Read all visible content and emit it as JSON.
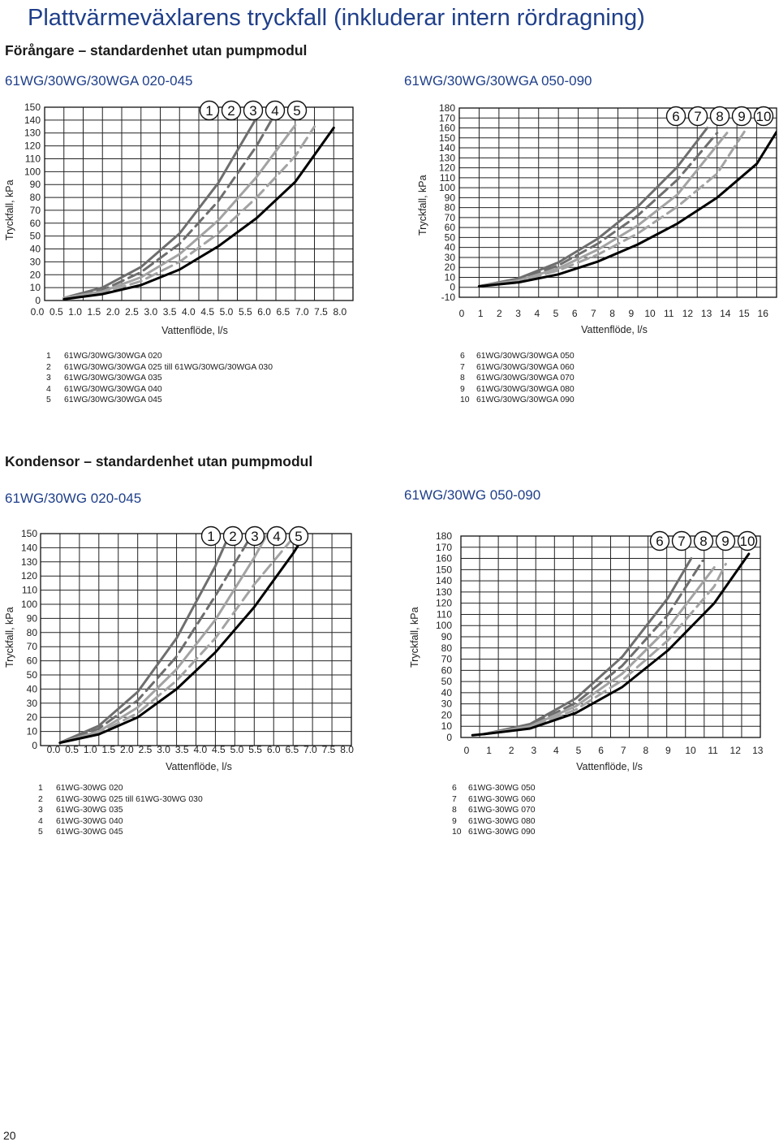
{
  "page": {
    "title": "Plattvärmeväxlarens tryckfall (inkluderar intern rördragning)",
    "page_number": "20"
  },
  "sections": [
    {
      "title": "Förångare – standardenhet utan pumpmodul"
    },
    {
      "title": "Kondensor – standardenhet utan pumpmodul"
    }
  ],
  "legends": [
    [
      "61WG/30WG/30WGA 020",
      "61WG/30WG/30WGA 025 till 61WG/30WG/30WGA 030",
      "61WG/30WG/30WGA 035",
      "61WG/30WG/30WGA 040",
      "61WG/30WG/30WGA 045"
    ],
    [
      "61WG/30WG/30WGA 050",
      "61WG/30WG/30WGA 060",
      "61WG/30WG/30WGA 070",
      "61WG/30WG/30WGA 080",
      "61WG/30WG/30WGA 090"
    ],
    [
      "61WG-30WG 020",
      "61WG-30WG 025 till 61WG-30WG 030",
      "61WG-30WG 035",
      "61WG-30WG 040",
      "61WG-30WG 045"
    ],
    [
      "61WG-30WG 050",
      "61WG-30WG 060",
      "61WG-30WG 070",
      "61WG-30WG 080",
      "61WG-30WG 090"
    ]
  ],
  "series_style": [
    {
      "color": "#6e6e6e",
      "dash": "solid"
    },
    {
      "color": "#6e6e6e",
      "dash": "dashed"
    },
    {
      "color": "#a3a3a3",
      "dash": "solid"
    },
    {
      "color": "#a3a3a3",
      "dash": "dashed"
    },
    {
      "color": "#000000",
      "dash": "solid"
    }
  ],
  "chart_data": [
    {
      "type": "line",
      "title": "61WG/30WG/30WGA 020-045",
      "xlabel": "Vattenflöde, l/s",
      "ylabel": "Tryckfall, kPa",
      "xlim": [
        0,
        8
      ],
      "ylim": [
        0,
        150
      ],
      "xticks": [
        "0.0",
        "0.5",
        "1.0",
        "1.5",
        "2.0",
        "2.5",
        "3.0",
        "3.5",
        "4.0",
        "4.5",
        "5.0",
        "5.5",
        "6.0",
        "6.5",
        "7.0",
        "7.5",
        "8.0"
      ],
      "yticks": [
        "0",
        "10",
        "20",
        "30",
        "40",
        "50",
        "60",
        "70",
        "80",
        "90",
        "100",
        "110",
        "120",
        "130",
        "140",
        "150"
      ],
      "grid": true,
      "series": [
        {
          "name": "1",
          "x": [
            0.5,
            1.5,
            2.5,
            3.5,
            4.5,
            5.5
          ],
          "y": [
            2,
            10,
            26,
            52,
            91,
            142
          ]
        },
        {
          "name": "2",
          "x": [
            0.5,
            1.5,
            2.5,
            3.5,
            4.5,
            5.5,
            6.0
          ],
          "y": [
            2,
            8,
            22,
            44,
            77,
            120,
            146
          ]
        },
        {
          "name": "3",
          "x": [
            0.5,
            1.5,
            2.5,
            3.5,
            4.5,
            5.5,
            6.5
          ],
          "y": [
            2,
            7,
            18,
            36,
            62,
            96,
            136
          ]
        },
        {
          "name": "4",
          "x": [
            0.5,
            1.5,
            2.5,
            3.5,
            4.5,
            5.5,
            6.5,
            7.0
          ],
          "y": [
            2,
            6,
            15,
            30,
            52,
            80,
            112,
            135
          ]
        },
        {
          "name": "5",
          "x": [
            0.5,
            1.5,
            2.5,
            3.5,
            4.5,
            5.5,
            6.5,
            7.5
          ],
          "y": [
            1,
            5,
            12,
            24,
            42,
            64,
            92,
            134
          ]
        }
      ]
    },
    {
      "type": "line",
      "title": "61WG/30WG/30WGA 050-090",
      "xlabel": "Vattenflöde, l/s",
      "ylabel": "Tryckfall, kPa",
      "xlim": [
        0,
        16
      ],
      "ylim": [
        -10,
        180
      ],
      "xticks": [
        "0",
        "1",
        "2",
        "3",
        "4",
        "5",
        "6",
        "7",
        "8",
        "9",
        "10",
        "11",
        "12",
        "13",
        "14",
        "15",
        "16"
      ],
      "yticks": [
        "-10",
        "0",
        "10",
        "20",
        "30",
        "40",
        "50",
        "60",
        "70",
        "80",
        "90",
        "100",
        "110",
        "120",
        "130",
        "140",
        "150",
        "160",
        "170",
        "180"
      ],
      "grid": true,
      "series": [
        {
          "name": "6",
          "x": [
            1,
            3,
            5,
            7,
            9,
            11,
            12.5
          ],
          "y": [
            1,
            9,
            25,
            49,
            81,
            121,
            160
          ]
        },
        {
          "name": "7",
          "x": [
            1,
            3,
            5,
            7,
            9,
            11,
            13
          ],
          "y": [
            1,
            8,
            22,
            44,
            72,
            108,
            155
          ]
        },
        {
          "name": "8",
          "x": [
            1,
            3,
            5,
            7,
            9,
            11,
            13.5
          ],
          "y": [
            1,
            7,
            19,
            38,
            62,
            93,
            155
          ]
        },
        {
          "name": "9",
          "x": [
            1,
            3,
            5,
            7,
            9,
            11,
            13,
            14.5
          ],
          "y": [
            1,
            6,
            17,
            33,
            54,
            81,
            114,
            160
          ]
        },
        {
          "name": "10",
          "x": [
            1,
            3,
            5,
            7,
            9,
            11,
            13,
            15,
            16
          ],
          "y": [
            1,
            5,
            13,
            26,
            43,
            64,
            90,
            124,
            156
          ]
        }
      ]
    },
    {
      "type": "line",
      "title": "61WG/30WG 020-045",
      "xlabel": "Vattenflöde, l/s",
      "ylabel": "Tryckfall, kPa",
      "xlim": [
        0,
        8
      ],
      "ylim": [
        0,
        150
      ],
      "xticks": [
        "0.0",
        "0.5",
        "1.0",
        "1.5",
        "2.0",
        "2.5",
        "3.0",
        "3.5",
        "4.0",
        "4.5",
        "5.0",
        "5.5",
        "6.0",
        "6.5",
        "7.0",
        "7.5",
        "8.0"
      ],
      "yticks": [
        "0",
        "10",
        "20",
        "30",
        "40",
        "50",
        "60",
        "70",
        "80",
        "90",
        "100",
        "110",
        "120",
        "130",
        "140",
        "150"
      ],
      "grid": true,
      "series": [
        {
          "name": "1",
          "x": [
            0.5,
            1.5,
            2.5,
            3.5,
            4.5,
            5.0
          ],
          "y": [
            2,
            14,
            38,
            76,
            127,
            158
          ]
        },
        {
          "name": "2",
          "x": [
            0.5,
            1.5,
            2.5,
            3.5,
            4.5,
            5.5
          ],
          "y": [
            2,
            12,
            32,
            63,
            106,
            152
          ]
        },
        {
          "name": "3",
          "x": [
            0.5,
            1.5,
            2.5,
            3.5,
            4.5,
            5.5,
            6.0
          ],
          "y": [
            2,
            10,
            27,
            54,
            89,
            133,
            158
          ]
        },
        {
          "name": "4",
          "x": [
            0.5,
            1.5,
            2.5,
            3.5,
            4.5,
            5.5,
            6.5
          ],
          "y": [
            2,
            9,
            23,
            46,
            76,
            114,
            147
          ]
        },
        {
          "name": "5",
          "x": [
            0.5,
            1.5,
            2.5,
            3.5,
            4.5,
            5.5,
            6.5,
            7.0
          ],
          "y": [
            2,
            8,
            20,
            40,
            66,
            98,
            136,
            158
          ]
        }
      ]
    },
    {
      "type": "line",
      "title": "61WG/30WG 050-090",
      "xlabel": "Vattenflöde, l/s",
      "ylabel": "Tryckfall, kPa",
      "xlim": [
        0,
        13
      ],
      "ylim": [
        0,
        180
      ],
      "xticks": [
        "0",
        "1",
        "2",
        "3",
        "4",
        "5",
        "6",
        "7",
        "8",
        "9",
        "10",
        "11",
        "12",
        "13"
      ],
      "yticks": [
        "0",
        "10",
        "20",
        "30",
        "40",
        "50",
        "60",
        "70",
        "80",
        "90",
        "100",
        "110",
        "120",
        "130",
        "140",
        "150",
        "160",
        "170",
        "180"
      ],
      "grid": true,
      "series": [
        {
          "name": "6",
          "x": [
            1,
            3,
            5,
            7,
            9,
            10
          ],
          "y": [
            3,
            12,
            35,
            72,
            125,
            160
          ]
        },
        {
          "name": "7",
          "x": [
            1,
            3,
            5,
            7,
            9,
            10.5
          ],
          "y": [
            3,
            11,
            31,
            64,
            110,
            158
          ]
        },
        {
          "name": "8",
          "x": [
            1,
            3,
            5,
            7,
            9,
            11
          ],
          "y": [
            3,
            10,
            28,
            57,
            98,
            152
          ]
        },
        {
          "name": "9",
          "x": [
            1,
            3,
            5,
            7,
            9,
            11,
            11.5
          ],
          "y": [
            3,
            9,
            25,
            51,
            87,
            135,
            155
          ]
        },
        {
          "name": "10",
          "x": [
            0.5,
            1,
            3,
            5,
            7,
            9,
            11,
            12.5
          ],
          "y": [
            2,
            3,
            8,
            22,
            45,
            78,
            120,
            164
          ]
        }
      ]
    }
  ]
}
